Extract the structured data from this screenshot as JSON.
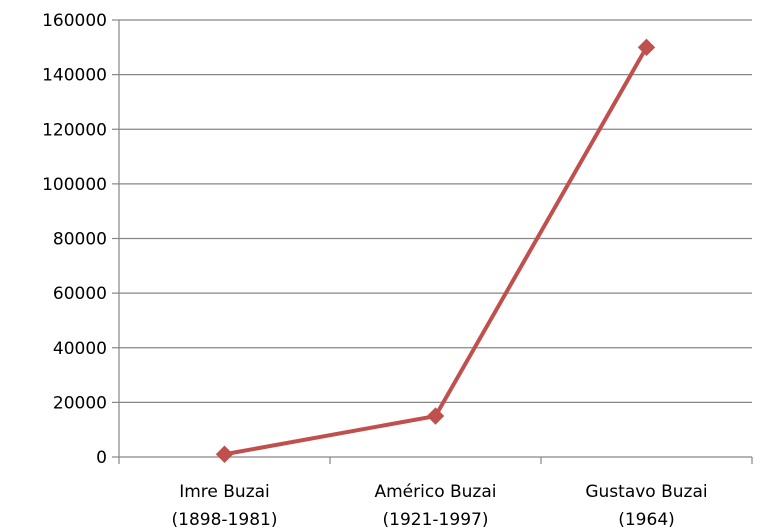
{
  "chart_data": {
    "type": "line",
    "title": "",
    "xlabel": "",
    "ylabel": "",
    "categories": [
      [
        "Imre Buzai",
        "(1898-1981)"
      ],
      [
        "Américo Buzai",
        "(1921-1997)"
      ],
      [
        "Gustavo Buzai",
        "(1964)"
      ]
    ],
    "series": [
      {
        "values": [
          1000,
          15000,
          150000
        ],
        "color": "#c0504d",
        "marker": "diamond"
      }
    ],
    "ylim": [
      0,
      160000
    ],
    "yticks": [
      0,
      20000,
      40000,
      60000,
      80000,
      100000,
      120000,
      140000,
      160000
    ],
    "ytick_labels": [
      "0",
      "20000",
      "40000",
      "60000",
      "80000",
      "100000",
      "120000",
      "140000",
      "160000"
    ],
    "grid": true,
    "legend": "none",
    "gridline_color": "#868686",
    "axis_color": "#868686"
  }
}
